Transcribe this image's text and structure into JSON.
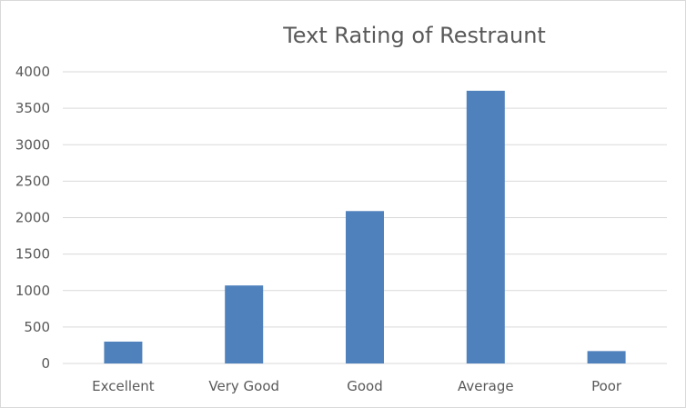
{
  "chart_data": {
    "type": "bar",
    "title": "Text Rating of Restraunt",
    "xlabel": "",
    "ylabel": "",
    "categories": [
      "Excellent",
      "Very Good",
      "Good",
      "Average",
      "Poor"
    ],
    "values": [
      300,
      1070,
      2090,
      3740,
      170
    ],
    "ylim": [
      0,
      4000
    ],
    "yticks": [
      0,
      500,
      1000,
      1500,
      2000,
      2500,
      3000,
      3500,
      4000
    ],
    "grid": true,
    "legend": "none",
    "bar_color": "#4f81bd",
    "grid_color": "#d9d9d9"
  }
}
